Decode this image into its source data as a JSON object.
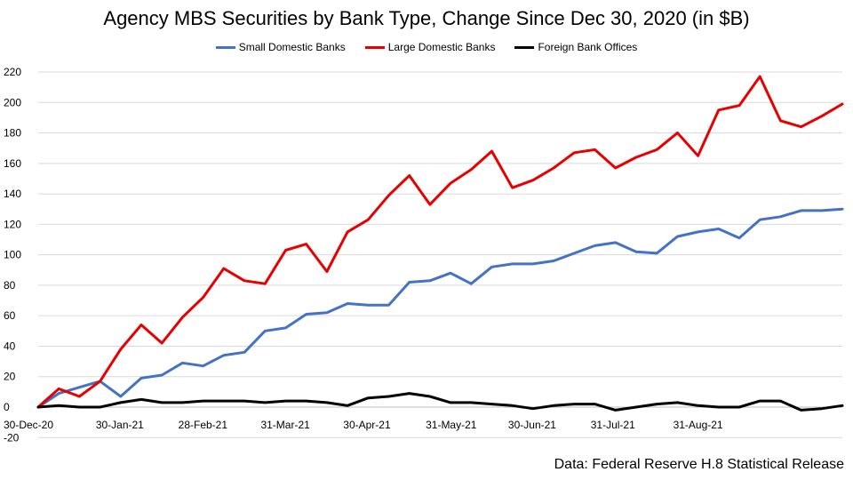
{
  "chart_data": {
    "type": "line",
    "title": "Agency MBS Securities by Bank Type, Change Since Dec 30, 2020 (in $B)",
    "source": "Data: Federal Reserve H.8 Statistical Release",
    "ylim": [
      -20,
      220
    ],
    "yticks": [
      -20,
      0,
      20,
      40,
      60,
      80,
      100,
      120,
      140,
      160,
      180,
      200,
      220
    ],
    "xtick_labels": [
      {
        "index": 0,
        "label": "30-Dec-20"
      },
      {
        "index": 4,
        "label": "30-Jan-21"
      },
      {
        "index": 8,
        "label": "28-Feb-21"
      },
      {
        "index": 12,
        "label": "31-Mar-21"
      },
      {
        "index": 16,
        "label": "30-Apr-21"
      },
      {
        "index": 20,
        "label": "31-May-21"
      },
      {
        "index": 24,
        "label": "30-Jun-21"
      },
      {
        "index": 28,
        "label": "31-Jul-21"
      },
      {
        "index": 32,
        "label": "31-Aug-21"
      }
    ],
    "grid": "horizontal",
    "legend_position": "top",
    "series": [
      {
        "name": "Small Domestic Banks",
        "color": "#4472C4",
        "values": [
          0,
          9,
          13,
          17,
          7,
          19,
          21,
          29,
          27,
          34,
          36,
          50,
          52,
          61,
          62,
          68,
          67,
          67,
          82,
          83,
          88,
          81,
          92,
          94,
          94,
          96,
          101,
          106,
          108,
          102,
          101,
          112,
          115,
          117,
          111,
          123,
          125,
          129,
          129,
          130
        ]
      },
      {
        "name": "Large Domestic Banks",
        "color": "#E80000",
        "values": [
          0,
          12,
          7,
          17,
          38,
          54,
          42,
          59,
          72,
          91,
          83,
          81,
          103,
          107,
          89,
          115,
          123,
          139,
          152,
          133,
          147,
          156,
          168,
          144,
          149,
          157,
          167,
          169,
          157,
          164,
          169,
          180,
          165,
          195,
          198,
          217,
          188,
          184,
          191,
          199
        ]
      },
      {
        "name": "Foreign Bank Offices",
        "color": "#000000",
        "values": [
          0,
          1,
          0,
          0,
          3,
          5,
          3,
          3,
          4,
          4,
          4,
          3,
          4,
          4,
          3,
          1,
          6,
          7,
          9,
          7,
          3,
          3,
          2,
          1,
          -1,
          1,
          2,
          2,
          -2,
          0,
          2,
          3,
          1,
          0,
          0,
          4,
          4,
          -2,
          -1,
          1
        ]
      }
    ]
  }
}
